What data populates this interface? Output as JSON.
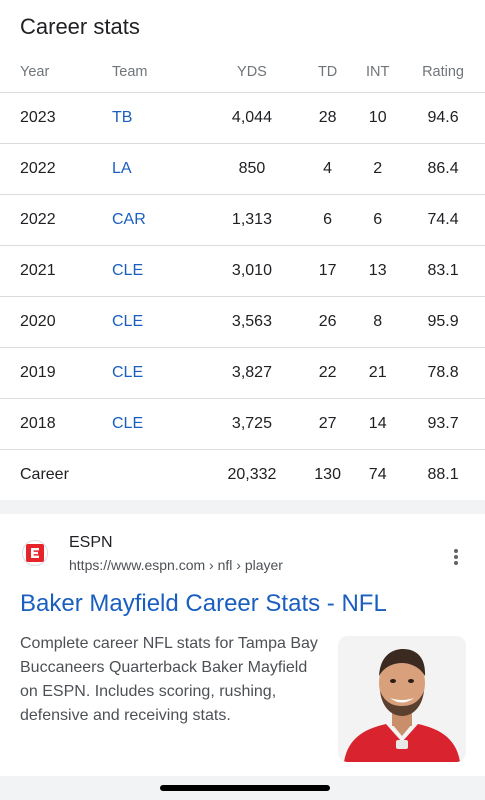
{
  "stats": {
    "title": "Career stats",
    "headers": [
      "Year",
      "Team",
      "YDS",
      "TD",
      "INT",
      "Rating"
    ],
    "rows": [
      [
        "2023",
        "TB",
        "4,044",
        "28",
        "10",
        "94.6"
      ],
      [
        "2022",
        "LA",
        "850",
        "4",
        "2",
        "86.4"
      ],
      [
        "2022",
        "CAR",
        "1,313",
        "6",
        "6",
        "74.4"
      ],
      [
        "2021",
        "CLE",
        "3,010",
        "17",
        "13",
        "83.1"
      ],
      [
        "2020",
        "CLE",
        "3,563",
        "26",
        "8",
        "95.9"
      ],
      [
        "2019",
        "CLE",
        "3,827",
        "22",
        "21",
        "78.8"
      ],
      [
        "2018",
        "CLE",
        "3,725",
        "27",
        "14",
        "93.7"
      ]
    ],
    "career": [
      "Career",
      "",
      "20,332",
      "130",
      "74",
      "88.1"
    ]
  },
  "result": {
    "site_name": "ESPN",
    "url": "https://www.espn.com › nfl › player",
    "title": "Baker Mayfield Career Stats - NFL",
    "snippet": "Complete career NFL stats for Tampa Bay Buccaneers Quarterback Baker Mayfield on ESPN. Includes scoring, rushing, defensive and receiving stats.",
    "favicon_icon": "espn-logo-icon",
    "more_icon": "more-vert-icon",
    "thumbnail": "player-photo"
  },
  "colors": {
    "link": "#1a5fbf",
    "espn_red": "#e8242b",
    "jersey_red": "#d9232e"
  }
}
